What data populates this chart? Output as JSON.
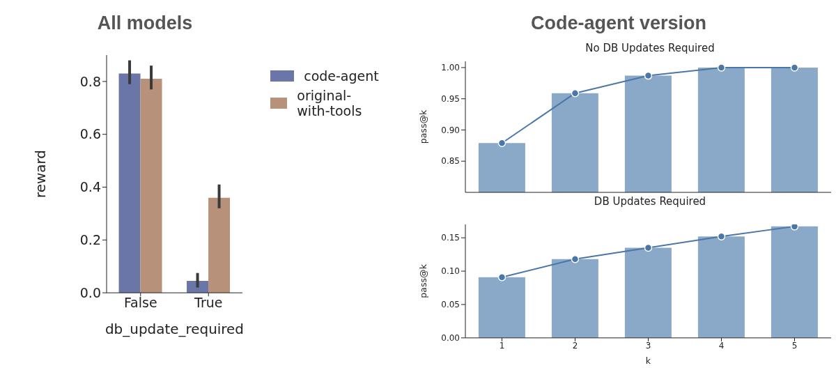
{
  "chart_data": [
    {
      "type": "bar",
      "title": "All models",
      "xlabel": "db_update_required",
      "ylabel": "reward",
      "categories": [
        "False",
        "True"
      ],
      "ylim": [
        0,
        0.9
      ],
      "yticks": [
        {
          "value": 0,
          "label": "0.0"
        },
        {
          "value": 0.2,
          "label": "0.2"
        },
        {
          "value": 0.4,
          "label": "0.4"
        },
        {
          "value": 0.6,
          "label": "0.6"
        },
        {
          "value": 0.8,
          "label": "0.8"
        }
      ],
      "legend": "right",
      "grid": false,
      "series": [
        {
          "name": "code-agent",
          "color": "#6b76a8",
          "values": [
            0.83,
            0.045
          ],
          "errors": [
            [
              0.79,
              0.88
            ],
            [
              0.02,
              0.075
            ]
          ]
        },
        {
          "name": "original-with-tools",
          "color": "#b8917a",
          "values": [
            0.81,
            0.36
          ],
          "errors": [
            [
              0.77,
              0.86
            ],
            [
              0.32,
              0.41
            ]
          ]
        }
      ]
    },
    {
      "type": "bar",
      "title": "No DB Updates Required",
      "annotations": [
        "Code-agent version"
      ],
      "ylabel": "pass@k",
      "categories": [
        "1",
        "2",
        "3",
        "4",
        "5"
      ],
      "ylim": [
        0.8,
        1.01
      ],
      "yticks": [
        0.85,
        {
          "value": 0.9,
          "label": "0.90"
        },
        0.95,
        {
          "value": 1,
          "label": "1.00"
        }
      ],
      "tick_labels": "y",
      "marker": "circle",
      "grid": false,
      "series": [
        {
          "type": "bar",
          "color": "#8aa8c8",
          "values": [
            0.879,
            0.959,
            0.987,
            1.0,
            1.0
          ]
        },
        {
          "type": "line",
          "color": "#4a76a8",
          "values": [
            0.879,
            0.959,
            0.987,
            1.0,
            1.0
          ]
        }
      ]
    },
    {
      "type": "bar",
      "title": "DB Updates Required",
      "xlabel": "k",
      "ylabel": "pass@k",
      "categories": [
        "1",
        "2",
        "3",
        "4",
        "5"
      ],
      "ylim": [
        0,
        0.17
      ],
      "yticks": [
        {
          "value": 0,
          "label": "0.00"
        },
        0.05,
        {
          "value": 0.1,
          "label": "0.10"
        },
        0.15
      ],
      "marker": "circle",
      "grid": false,
      "series": [
        {
          "type": "bar",
          "color": "#8aa8c8",
          "values": [
            0.091,
            0.118,
            0.135,
            0.152,
            0.167
          ]
        },
        {
          "type": "line",
          "color": "#4a76a8",
          "values": [
            0.091,
            0.118,
            0.135,
            0.152,
            0.167
          ]
        }
      ]
    }
  ]
}
